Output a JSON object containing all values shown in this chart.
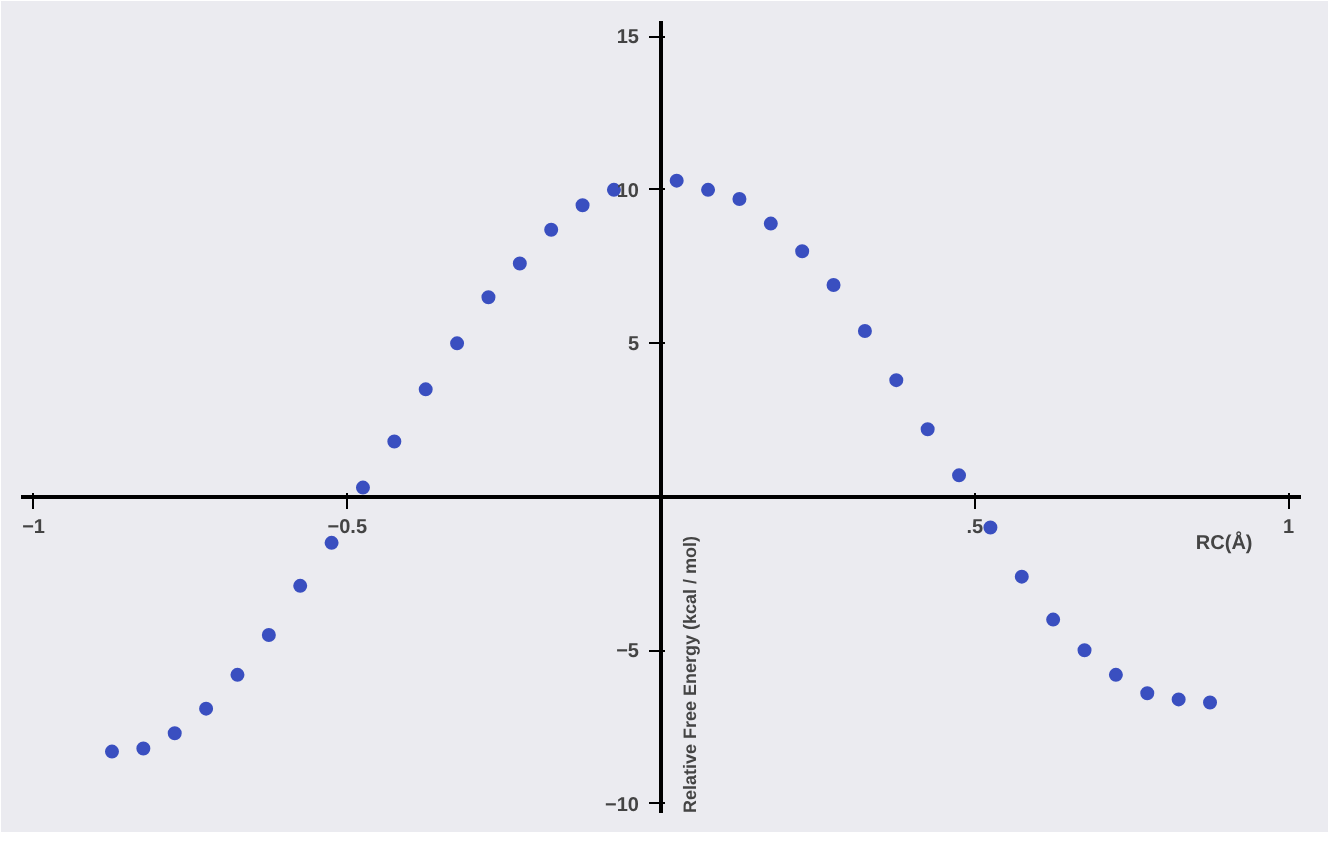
{
  "chart_data": {
    "type": "scatter",
    "xlabel": "RC(Å)",
    "ylabel": "Relative Free Energy (kcal / mol)",
    "x": [
      -0.875,
      -0.825,
      -0.775,
      -0.725,
      -0.675,
      -0.625,
      -0.575,
      -0.525,
      -0.475,
      -0.425,
      -0.375,
      -0.325,
      -0.275,
      -0.225,
      -0.175,
      -0.125,
      -0.075,
      0.025,
      0.075,
      0.125,
      0.175,
      0.225,
      0.275,
      0.325,
      0.375,
      0.425,
      0.475,
      0.525,
      0.575,
      0.625,
      0.675,
      0.725,
      0.775,
      0.825,
      0.875
    ],
    "series": [
      {
        "color": "#3a4fc0",
        "values": [
          -8.3,
          -8.2,
          -7.7,
          -6.9,
          -5.8,
          -4.5,
          -2.9,
          -1.5,
          0.3,
          1.8,
          3.5,
          5.0,
          6.5,
          7.6,
          8.7,
          9.5,
          10.0,
          10.3,
          10.0,
          9.7,
          8.9,
          8.0,
          6.9,
          5.4,
          3.8,
          2.2,
          0.7,
          -1.0,
          -2.6,
          -4.0,
          -5.0,
          -5.8,
          -6.4,
          -6.6,
          -6.7
        ]
      }
    ],
    "xlim": [
      -1.02,
      1.02
    ],
    "ylim": [
      -10.3,
      15.5
    ],
    "xticks": [
      -1,
      -0.5,
      {
        "value": 0.5,
        "label": ".5"
      },
      1
    ],
    "yticks": [
      -10,
      -5,
      5,
      10,
      15
    ],
    "marker": "circle",
    "grid": false
  }
}
